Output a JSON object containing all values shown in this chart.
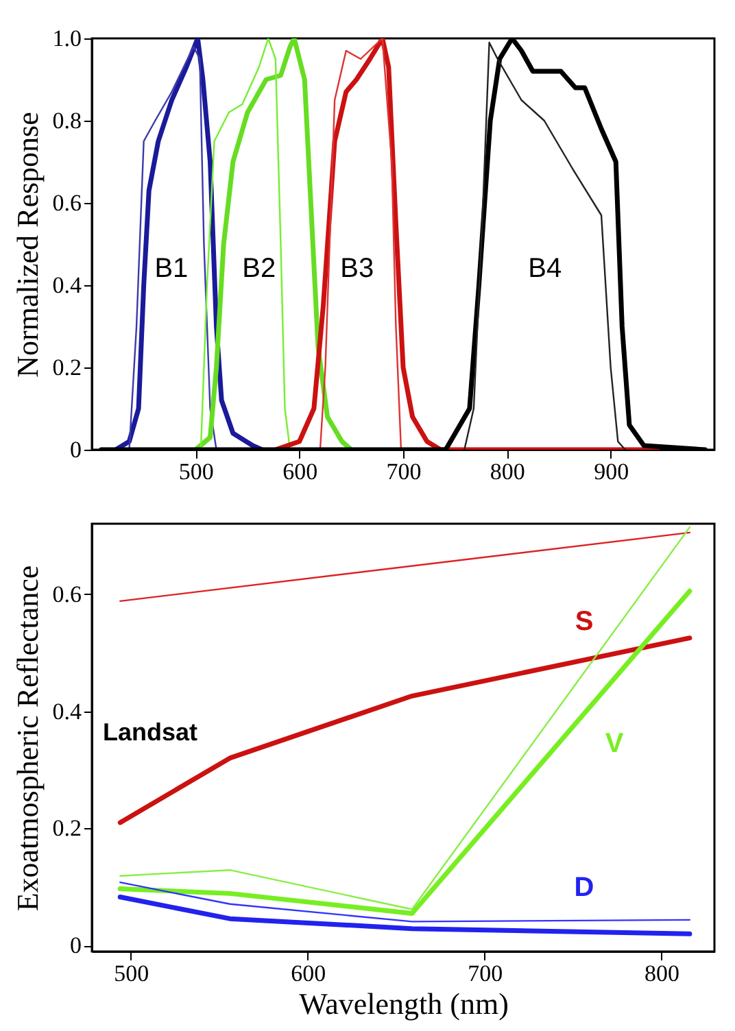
{
  "chart_data": [
    {
      "type": "line",
      "ylabel": "Normalized Response",
      "xlim": [
        400,
        1000
      ],
      "xticks": [
        500,
        600,
        700,
        800,
        900
      ],
      "ylim": [
        0,
        1.0
      ],
      "yticks": [
        0,
        {
          "value": 0.2,
          "label": "0.2"
        },
        {
          "value": 0.4,
          "label": "0.4"
        },
        {
          "value": 0.6,
          "label": "0.6"
        },
        {
          "value": 0.8,
          "label": "0.8"
        },
        {
          "value": 1.0,
          "label": "1.0"
        }
      ],
      "grid": false,
      "marker": "none",
      "series": [
        {
          "name": "B1",
          "color": "#1a1a9a",
          "x": [
            423,
            436,
            445,
            450,
            455,
            464,
            477,
            491,
            502,
            507,
            514,
            520,
            525,
            536,
            555,
            564
          ],
          "values": [
            0,
            0.02,
            0.1,
            0.4,
            0.63,
            0.75,
            0.85,
            0.93,
            1.0,
            0.9,
            0.7,
            0.3,
            0.12,
            0.04,
            0.01,
            0
          ]
        },
        {
          "color": "#3a3aaa",
          "x": [
            436,
            443,
            450,
            461,
            477,
            498,
            504,
            508,
            514,
            520
          ],
          "values": [
            0,
            0.3,
            0.75,
            0.8,
            0.87,
            0.98,
            0.95,
            0.5,
            0.1,
            0
          ]
        },
        {
          "name": "B2",
          "color": "#66dd22",
          "x": [
            500,
            514,
            520,
            527,
            536,
            550,
            568,
            582,
            591,
            595,
            605,
            611,
            618,
            627,
            641,
            650
          ],
          "values": [
            0,
            0.03,
            0.2,
            0.5,
            0.7,
            0.82,
            0.9,
            0.91,
            0.98,
            1.0,
            0.9,
            0.6,
            0.25,
            0.08,
            0.02,
            0
          ]
        },
        {
          "color": "#77ee33",
          "x": [
            505,
            511,
            518,
            532,
            545,
            561,
            570,
            577,
            582,
            586,
            591
          ],
          "values": [
            0,
            0.4,
            0.75,
            0.82,
            0.84,
            0.93,
            1.0,
            0.95,
            0.5,
            0.1,
            0
          ]
        },
        {
          "name": "B3",
          "color": "#cc1111",
          "x": [
            577,
            600,
            614,
            623,
            634,
            645,
            655,
            668,
            680,
            686,
            693,
            700,
            709,
            723,
            736,
            945
          ],
          "values": [
            0,
            0.02,
            0.1,
            0.35,
            0.75,
            0.87,
            0.9,
            0.95,
            1.0,
            0.93,
            0.55,
            0.2,
            0.08,
            0.02,
            0,
            0
          ]
        },
        {
          "color": "#dd3333",
          "x": [
            620,
            625,
            634,
            645,
            659,
            680,
            689,
            693,
            698
          ],
          "values": [
            0,
            0.2,
            0.85,
            0.97,
            0.95,
            1.0,
            0.7,
            0.3,
            0
          ]
        },
        {
          "name": "B4",
          "color": "#000000",
          "x": [
            409,
            741,
            764,
            773,
            784,
            793,
            805,
            814,
            825,
            852,
            866,
            875,
            891,
            905,
            911,
            918,
            932,
            991
          ],
          "values": [
            0,
            0,
            0.1,
            0.4,
            0.8,
            0.95,
            1.0,
            0.97,
            0.92,
            0.92,
            0.88,
            0.88,
            0.78,
            0.7,
            0.3,
            0.06,
            0.01,
            0
          ]
        },
        {
          "color": "#222222",
          "x": [
            759,
            768,
            777,
            783,
            791,
            814,
            836,
            864,
            891,
            900,
            907,
            914
          ],
          "values": [
            0,
            0.1,
            0.6,
            0.99,
            0.95,
            0.85,
            0.8,
            0.68,
            0.57,
            0.2,
            0.02,
            0
          ]
        }
      ]
    },
    {
      "type": "line",
      "xlabel": "Wavelength (nm)",
      "ylabel": "Exoatmospheric Reflectance",
      "xlim": [
        478,
        830
      ],
      "xticks": [
        500,
        600,
        700,
        800
      ],
      "ylim": [
        -0.01,
        0.72
      ],
      "yticks": [
        0,
        {
          "value": 0.2,
          "label": "0.2"
        },
        {
          "value": 0.4,
          "label": "0.4"
        },
        {
          "value": 0.6,
          "label": "0.6"
        }
      ],
      "grid": false,
      "marker": "none",
      "annotations": [
        "Landsat"
      ],
      "series": [
        {
          "name": "S",
          "color": "#cc1111",
          "x": [
            494,
            556,
            659,
            816
          ],
          "values": [
            0.21,
            0.32,
            0.426,
            0.525
          ]
        },
        {
          "color": "#dd2222",
          "x": [
            494,
            816
          ],
          "values": [
            0.588,
            0.705
          ]
        },
        {
          "name": "V",
          "color": "#77ee22",
          "x": [
            494,
            556,
            659,
            816
          ],
          "values": [
            0.097,
            0.089,
            0.055,
            0.605
          ]
        },
        {
          "color": "#88ee44",
          "x": [
            494,
            556,
            659,
            816
          ],
          "values": [
            0.119,
            0.129,
            0.062,
            0.714
          ]
        },
        {
          "name": "D",
          "color": "#2222ee",
          "x": [
            494,
            556,
            659,
            816
          ],
          "values": [
            0.083,
            0.046,
            0.029,
            0.02
          ]
        },
        {
          "color": "#3333ff",
          "x": [
            494,
            556,
            659,
            816
          ],
          "values": [
            0.108,
            0.071,
            0.041,
            0.044
          ]
        }
      ]
    }
  ]
}
